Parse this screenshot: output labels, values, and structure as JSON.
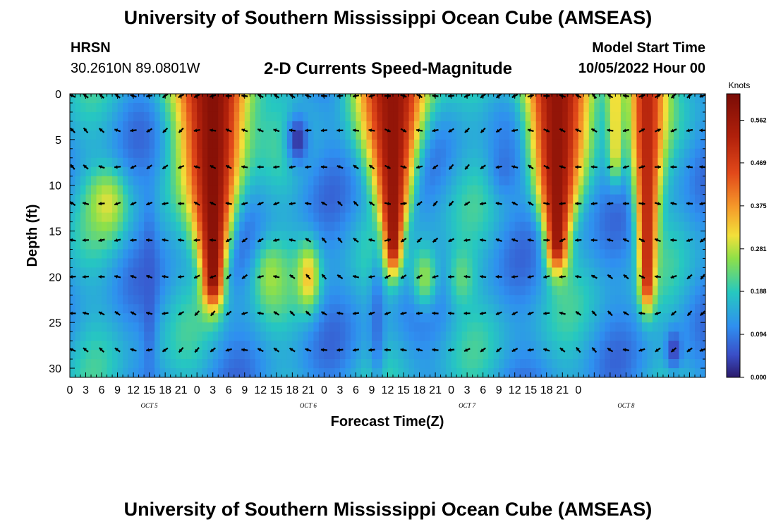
{
  "header": {
    "title": "University of Southern Mississippi Ocean Cube (AMSEAS)",
    "station": "HRSN",
    "coordinates": "30.2610N  89.0801W",
    "subtitle": "2-D Currents Speed-Magnitude",
    "model_start_label": "Model Start Time",
    "model_start_value": "10/05/2022 Hour 00"
  },
  "footer": {
    "title": "University of Southern Mississippi Ocean Cube (AMSEAS)"
  },
  "chart_data": {
    "type": "heatmap",
    "title": "2-D Currents Speed-Magnitude",
    "xlabel": "Forecast Time(Z)",
    "ylabel": "Depth (ft)",
    "x_range": [
      0,
      120
    ],
    "y_range": [
      0,
      31
    ],
    "x_tick_labels": [
      "0",
      "3",
      "6",
      "9",
      "12",
      "15",
      "18",
      "21",
      "0",
      "3",
      "6",
      "9",
      "12",
      "15",
      "18",
      "21",
      "0",
      "3",
      "6",
      "9",
      "12",
      "15",
      "18",
      "21",
      "0",
      "3",
      "6",
      "9",
      "12",
      "15",
      "18",
      "21",
      "0"
    ],
    "y_ticks": [
      0,
      5,
      10,
      15,
      20,
      25,
      30
    ],
    "day_labels": [
      {
        "label": "OCT  5",
        "hour": 15
      },
      {
        "label": "OCT  6",
        "hour": 45
      },
      {
        "label": "OCT  7",
        "hour": 75
      },
      {
        "label": "OCT  8",
        "hour": 105
      }
    ],
    "colorbar": {
      "units": "Knots",
      "ticks": [
        0.0,
        0.094,
        0.188,
        0.281,
        0.375,
        0.469,
        0.562
      ],
      "tick_labels": [
        "0.000",
        "0.094",
        "0.188",
        "0.281",
        "0.375",
        "0.469",
        "0.562"
      ],
      "range": [
        0,
        0.62
      ]
    },
    "vector_depths": [
      0,
      4,
      8,
      12,
      16,
      20,
      24,
      28
    ],
    "vector_hours": [
      0,
      3,
      6,
      9,
      12,
      15,
      18,
      21,
      24,
      27,
      30,
      33,
      36,
      39,
      42,
      45,
      48,
      51,
      54,
      57,
      60,
      63,
      66,
      69,
      72,
      75,
      78,
      81,
      84,
      87,
      90,
      93,
      96,
      99,
      102,
      105,
      108,
      111,
      114,
      117,
      120
    ],
    "speed_features": [
      {
        "hour": 27,
        "depth": 0,
        "depth_end": 20,
        "speed": 0.6,
        "width_top": 5,
        "width_bottom": 1.5
      },
      {
        "hour": 61,
        "depth": 0,
        "depth_end": 16,
        "speed": 0.58,
        "width_top": 4.5,
        "width_bottom": 1.2
      },
      {
        "hour": 92,
        "depth": 0,
        "depth_end": 16,
        "speed": 0.58,
        "width_top": 4.5,
        "width_bottom": 1.5
      },
      {
        "hour": 109,
        "depth": 0,
        "depth_end": 20,
        "speed": 0.52,
        "width_top": 2.5,
        "width_bottom": 1.0
      },
      {
        "hour": 103,
        "depth": 0,
        "depth_end": 6,
        "speed": 0.32,
        "width_top": 1.5,
        "width_bottom": 1.0
      },
      {
        "hour": 7,
        "depth": 12,
        "depth_end": 12,
        "speed": 0.3,
        "width_top": 2.5,
        "width_bottom": 2.5
      },
      {
        "hour": 45,
        "depth": 20,
        "depth_end": 20,
        "speed": 0.34,
        "width_top": 1.5,
        "width_bottom": 1.5
      },
      {
        "hour": 38,
        "depth": 20,
        "depth_end": 20,
        "speed": 0.27,
        "width_top": 2.0,
        "width_bottom": 2.0
      },
      {
        "hour": 67,
        "depth": 20,
        "depth_end": 20,
        "speed": 0.26,
        "width_top": 1.8,
        "width_bottom": 1.8
      },
      {
        "hour": 74,
        "depth": 20,
        "depth_end": 20,
        "speed": 0.23,
        "width_top": 1.8,
        "width_bottom": 1.8
      }
    ],
    "low_features": [
      {
        "hour": 43,
        "depth": 5,
        "speed": 0.0,
        "width": 1.5,
        "height": 4
      },
      {
        "hour": 15,
        "depth": 22,
        "speed": 0.06,
        "width": 1.0,
        "height": 14
      },
      {
        "hour": 114,
        "depth": 28,
        "speed": 0.02,
        "width": 1.0,
        "height": 3
      },
      {
        "hour": 82,
        "depth": 8,
        "speed": 0.08,
        "width": 2.0,
        "height": 5
      },
      {
        "hour": 58,
        "depth": 25,
        "speed": 0.07,
        "width": 1.0,
        "height": 10
      }
    ]
  }
}
